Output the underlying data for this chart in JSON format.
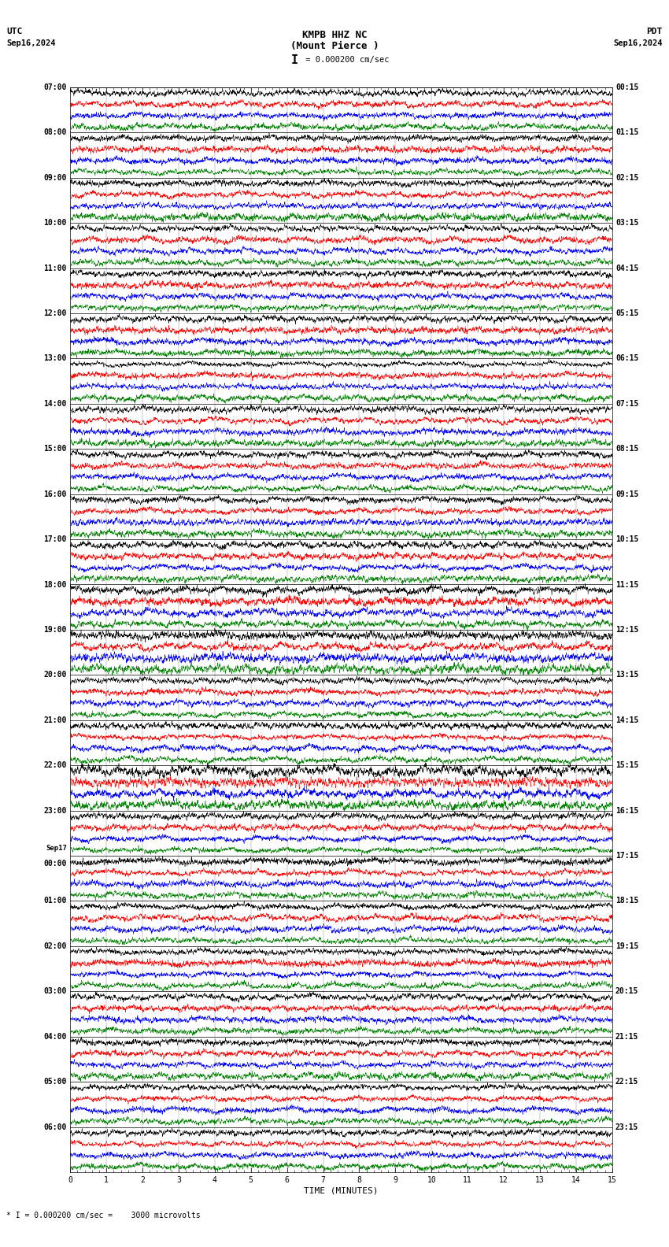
{
  "title_line1": "KMPB HHZ NC",
  "title_line2": "(Mount Pierce )",
  "utc_label": "UTC",
  "pdt_label": "PDT",
  "left_date": "Sep16,2024",
  "right_date": "Sep16,2024",
  "scale_label": "I = 0.000200 cm/sec",
  "footer_label": "* I = 0.000200 cm/sec =    3000 microvolts",
  "xlabel": "TIME (MINUTES)",
  "left_times_utc": [
    "07:00",
    "08:00",
    "09:00",
    "10:00",
    "11:00",
    "12:00",
    "13:00",
    "14:00",
    "15:00",
    "16:00",
    "17:00",
    "18:00",
    "19:00",
    "20:00",
    "21:00",
    "22:00",
    "23:00",
    "Sep17\n00:00",
    "01:00",
    "02:00",
    "03:00",
    "04:00",
    "05:00",
    "06:00"
  ],
  "right_times_pdt": [
    "00:15",
    "01:15",
    "02:15",
    "03:15",
    "04:15",
    "05:15",
    "06:15",
    "07:15",
    "08:15",
    "09:15",
    "10:15",
    "11:15",
    "12:15",
    "13:15",
    "14:15",
    "15:15",
    "16:15",
    "17:15",
    "18:15",
    "19:15",
    "20:15",
    "21:15",
    "22:15",
    "23:15"
  ],
  "n_rows": 24,
  "traces_per_row": 4,
  "colors": [
    "black",
    "red",
    "blue",
    "green"
  ],
  "bg_color": "white",
  "xmin": 0,
  "xmax": 15,
  "xticks": [
    0,
    1,
    2,
    3,
    4,
    5,
    6,
    7,
    8,
    9,
    10,
    11,
    12,
    13,
    14,
    15
  ],
  "figwidth": 8.5,
  "figheight": 15.84,
  "dpi": 100
}
